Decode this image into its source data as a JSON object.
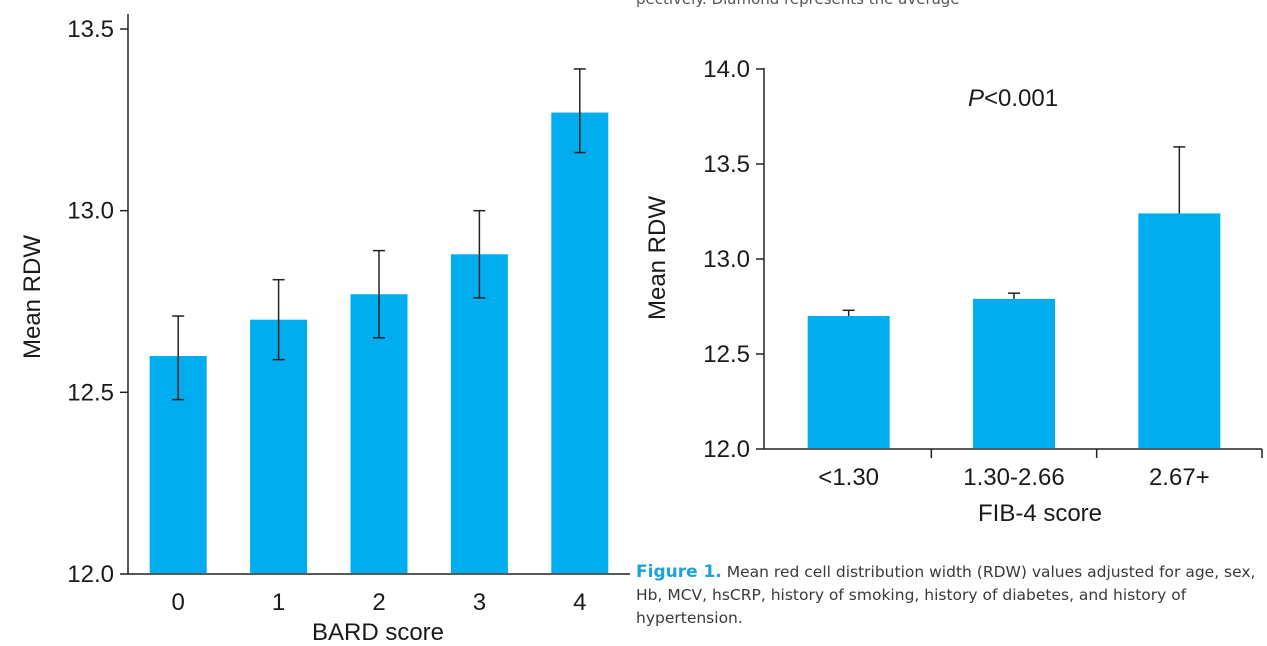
{
  "chart_data": [
    {
      "type": "bar",
      "title": "",
      "xlabel": "BARD score",
      "ylabel": "Mean RDW",
      "ylim": [
        12.0,
        13.5
      ],
      "yticks": [
        "12.0",
        "12.5",
        "13.0",
        "13.5"
      ],
      "ytick_values": [
        12.0,
        12.5,
        13.0,
        13.5
      ],
      "categories": [
        "0",
        "1",
        "2",
        "3",
        "4"
      ],
      "values": [
        12.6,
        12.7,
        12.77,
        12.88,
        13.27
      ],
      "err_low": [
        12.48,
        12.59,
        12.65,
        12.76,
        13.16
      ],
      "err_high": [
        12.71,
        12.81,
        12.89,
        13.0,
        13.39
      ],
      "bar_color": "#00aeef"
    },
    {
      "type": "bar",
      "title": "",
      "annotation": {
        "p_label": "P",
        "p_value": "<0.001"
      },
      "xlabel": "FIB-4 score",
      "ylabel": "Mean RDW",
      "ylim": [
        12.0,
        14.0
      ],
      "yticks": [
        "12.0",
        "12.5",
        "13.0",
        "13.5",
        "14.0"
      ],
      "ytick_values": [
        12.0,
        12.5,
        13.0,
        13.5,
        14.0
      ],
      "categories": [
        "<1.30",
        "1.30-2.66",
        "2.67+"
      ],
      "values": [
        12.7,
        12.79,
        13.24
      ],
      "err_high": [
        12.73,
        12.82,
        13.59
      ],
      "bar_color": "#00aeef"
    }
  ],
  "caption": {
    "lead": "Figure 1.",
    "text": " Mean red cell distribution width (RDW) values adjusted for age, sex, Hb, MCV, hsCRP, history of smoking, history of diabetes, and history of hypertension."
  },
  "top_fragment": "pectively. Diamond represents the average"
}
